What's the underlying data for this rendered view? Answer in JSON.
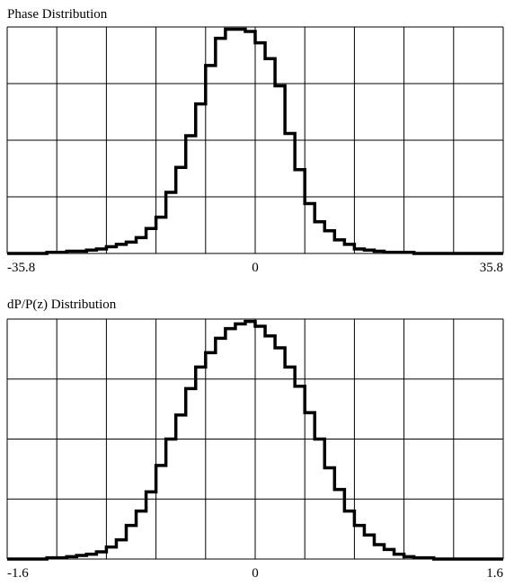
{
  "chart_data": [
    {
      "type": "histogram",
      "title": "Phase Distribution",
      "bins": [
        -35.8,
        -34.368,
        -32.936,
        -31.504,
        -30.072,
        -28.64,
        -27.208,
        -25.776,
        -24.344,
        -22.912,
        -21.48,
        -20.048,
        -18.616,
        -17.184,
        -15.752,
        -14.32,
        -12.888,
        -11.456,
        -10.024,
        -8.592,
        -7.16,
        -5.728,
        -4.296,
        -2.864,
        -1.432,
        0,
        1.432,
        2.864,
        4.296,
        5.728,
        7.16,
        8.592,
        10.024,
        11.456,
        12.888,
        14.32,
        15.752,
        17.184,
        18.616,
        20.048,
        21.48,
        22.912,
        24.344,
        25.776,
        27.208,
        28.64,
        30.072,
        31.504,
        32.936,
        34.368,
        35.8
      ],
      "values": [
        0,
        0,
        0,
        0,
        0.5,
        0.5,
        1,
        1,
        1.5,
        2,
        3,
        4,
        5,
        7,
        11,
        16,
        27,
        38,
        52,
        66,
        83,
        95,
        99,
        99,
        98,
        93,
        86,
        74,
        53,
        37,
        22,
        14,
        10,
        6,
        4,
        2,
        1.5,
        1,
        0.5,
        0.5,
        0.5,
        0,
        0,
        0,
        0,
        0,
        0,
        0,
        0,
        0
      ],
      "color": "#000000",
      "xlim": [
        -35.8,
        35.8
      ],
      "xticks": [
        -35.8,
        0,
        35.8
      ],
      "xgrid": [
        -35.8,
        -28.64,
        -21.48,
        -14.32,
        -7.16,
        0,
        7.16,
        14.32,
        21.48,
        28.64,
        35.8
      ],
      "ylim": [
        0,
        100
      ],
      "yticks": [
        0,
        25,
        50,
        75,
        100
      ],
      "grid": true
    },
    {
      "type": "histogram",
      "title": "dP/P(z) Distribution",
      "bins": [
        -1.6,
        -1.536,
        -1.472,
        -1.408,
        -1.344,
        -1.28,
        -1.216,
        -1.152,
        -1.088,
        -1.024,
        -0.96,
        -0.896,
        -0.832,
        -0.768,
        -0.704,
        -0.64,
        -0.576,
        -0.512,
        -0.448,
        -0.384,
        -0.32,
        -0.256,
        -0.192,
        -0.128,
        -0.064,
        0,
        0.064,
        0.128,
        0.192,
        0.256,
        0.32,
        0.384,
        0.448,
        0.512,
        0.576,
        0.64,
        0.704,
        0.768,
        0.832,
        0.896,
        0.96,
        1.024,
        1.088,
        1.152,
        1.216,
        1.28,
        1.344,
        1.408,
        1.472,
        1.536,
        1.6
      ],
      "values": [
        0,
        0,
        0,
        0,
        0.5,
        0.5,
        1,
        1.5,
        2,
        3,
        5,
        8,
        14,
        20,
        28,
        39,
        50,
        60,
        71,
        80,
        86,
        92,
        96,
        98,
        99,
        97,
        93,
        88,
        80,
        72,
        61,
        50,
        38,
        29,
        20,
        14,
        10,
        6,
        4,
        2,
        1,
        0.5,
        0.5,
        0,
        0,
        0,
        0,
        0,
        0,
        0
      ],
      "color": "#000000",
      "xlim": [
        -1.6,
        1.6
      ],
      "xticks": [
        -1.6,
        0,
        1.6
      ],
      "xgrid": [
        -1.6,
        -1.28,
        -0.96,
        -0.64,
        -0.32,
        0,
        0.32,
        0.64,
        0.96,
        1.28,
        1.6
      ],
      "ylim": [
        0,
        100
      ],
      "yticks": [
        0,
        25,
        50,
        75,
        100
      ],
      "grid": true
    }
  ]
}
